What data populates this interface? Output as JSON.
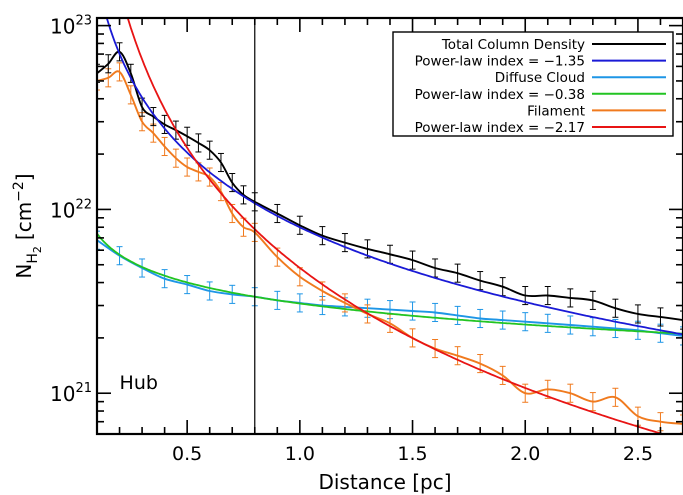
{
  "chart_data": {
    "type": "line",
    "xlabel": "Distance [pc]",
    "ylabel_base": "N",
    "ylabel_sub_main": "H",
    "ylabel_sub_sub": "2",
    "ylabel_units": "[cm",
    "ylabel_units_exp": "−2",
    "ylabel_units_close": "]",
    "xlim": [
      0.1,
      2.7
    ],
    "ylim": [
      6e+20,
      1.1e+23
    ],
    "yscale": "log",
    "x_ticks": [
      {
        "value": 0.5,
        "label": "0.5"
      },
      {
        "value": 1.0,
        "label": "1.0"
      },
      {
        "value": 1.5,
        "label": "1.5"
      },
      {
        "value": 2.0,
        "label": "2.0"
      },
      {
        "value": 2.5,
        "label": "2.5"
      }
    ],
    "y_ticks": [
      {
        "value": 1e+21,
        "base": "10",
        "exp": "21"
      },
      {
        "value": 1e+22,
        "base": "10",
        "exp": "22"
      },
      {
        "value": 1e+23,
        "base": "10",
        "exp": "23"
      }
    ],
    "vertical_line_x": 0.8,
    "annotation": {
      "text": "Hub",
      "x": 0.2,
      "y": 1e+21
    },
    "legend_position": "top-right",
    "legend": [
      {
        "label": "Total Column Density",
        "color": "#000000"
      },
      {
        "label": "Power-law index = −1.35",
        "color": "#1a1ad6"
      },
      {
        "label": "Diffuse Cloud",
        "color": "#1e96e6"
      },
      {
        "label": "Power-law index = −0.38",
        "color": "#22c422"
      },
      {
        "label": "Filament",
        "color": "#f07a1e"
      },
      {
        "label": "Power-law index = −2.17",
        "color": "#e81414"
      }
    ],
    "series": [
      {
        "name": "Total Column Density",
        "color": "#000000",
        "errorbars": true,
        "x": [
          0.1,
          0.15,
          0.2,
          0.25,
          0.3,
          0.35,
          0.4,
          0.45,
          0.5,
          0.55,
          0.6,
          0.65,
          0.7,
          0.75,
          0.8,
          0.9,
          1.0,
          1.1,
          1.2,
          1.3,
          1.4,
          1.5,
          1.6,
          1.7,
          1.8,
          1.9,
          2.0,
          2.1,
          2.2,
          2.3,
          2.4,
          2.5,
          2.6,
          2.7
        ],
        "y": [
          5.5e+22,
          6.2e+22,
          7.2e+22,
          5.5e+22,
          3.6e+22,
          3.2e+22,
          2.9e+22,
          2.7e+22,
          2.5e+22,
          2.3e+22,
          2.1e+22,
          1.8e+22,
          1.4e+22,
          1.2e+22,
          1.1e+22,
          9.5e+21,
          8.2e+21,
          7.2e+21,
          6.6e+21,
          6.1e+21,
          5.7e+21,
          5.3e+21,
          4.8e+21,
          4.5e+21,
          4.1e+21,
          3.8e+21,
          3.4e+21,
          3.4e+21,
          3.3e+21,
          3.2e+21,
          2.9e+21,
          2.7e+21,
          2.6e+21,
          2.5e+21
        ]
      },
      {
        "name": "Power-law index = −1.35",
        "color": "#1a1ad6",
        "errorbars": false,
        "powerlaw": {
          "A": 1.08e+22,
          "x0": 0.8,
          "k": -1.35
        },
        "x": [
          0.15,
          0.2,
          0.25,
          0.3,
          0.4,
          0.5,
          0.6,
          0.7,
          0.8,
          1.0,
          1.2,
          1.4,
          1.6,
          1.8,
          2.0,
          2.2,
          2.4,
          2.6,
          2.7
        ],
        "y": [
          1.03e+23,
          7.25e+22,
          5.3e+22,
          4.2e+22,
          2.9e+22,
          2.1e+22,
          1.59e+22,
          1.29e+22,
          1.08e+22,
          7.8e+21,
          6.1e+21,
          5e+21,
          4.2e+21,
          3.6e+21,
          3.1e+21,
          2.8e+21,
          2.5e+21,
          2.3e+21,
          2.2e+21
        ]
      },
      {
        "name": "Diffuse Cloud",
        "color": "#1e96e6",
        "errorbars": true,
        "x": [
          0.1,
          0.2,
          0.3,
          0.4,
          0.5,
          0.6,
          0.7,
          0.8,
          0.9,
          1.0,
          1.1,
          1.2,
          1.3,
          1.4,
          1.5,
          1.6,
          1.7,
          1.8,
          1.9,
          2.0,
          2.1,
          2.2,
          2.3,
          2.4,
          2.5,
          2.6,
          2.7
        ],
        "y": [
          6.8e+21,
          5.6e+21,
          4.8e+21,
          4.2e+21,
          3.9e+21,
          3.6e+21,
          3.45e+21,
          3.35e+21,
          3.2e+21,
          3.1e+21,
          3e+21,
          2.95e+21,
          2.9e+21,
          2.85e+21,
          2.8e+21,
          2.75e+21,
          2.65e+21,
          2.55e+21,
          2.5e+21,
          2.45e+21,
          2.4e+21,
          2.35e+21,
          2.3e+21,
          2.25e+21,
          2.2e+21,
          2.12e+21,
          2.05e+21
        ]
      },
      {
        "name": "Power-law index = −0.38",
        "color": "#22c422",
        "errorbars": false,
        "powerlaw": {
          "A": 3.35e+21,
          "x0": 0.8,
          "k": -0.38
        },
        "x": [
          0.1,
          0.2,
          0.3,
          0.4,
          0.5,
          0.6,
          0.7,
          0.8,
          1.0,
          1.2,
          1.4,
          1.6,
          1.8,
          2.0,
          2.2,
          2.4,
          2.6,
          2.7
        ],
        "y": [
          7e+21,
          5.4e+21,
          4.6e+21,
          4.35e+21,
          3.9e+21,
          3.7e+21,
          3.5e+21,
          3.35e+21,
          3.1e+21,
          2.9e+21,
          2.8e+21,
          2.7e+21,
          2.6e+21,
          2.5e+21,
          2.42e+21,
          2.35e+21,
          2.3e+21,
          2.27e+21
        ]
      },
      {
        "name": "Filament",
        "color": "#f07a1e",
        "errorbars": true,
        "x": [
          0.1,
          0.15,
          0.2,
          0.25,
          0.3,
          0.35,
          0.4,
          0.45,
          0.5,
          0.55,
          0.6,
          0.65,
          0.7,
          0.75,
          0.8,
          0.9,
          1.0,
          1.1,
          1.2,
          1.3,
          1.4,
          1.5,
          1.6,
          1.7,
          1.8,
          1.9,
          2.0,
          2.1,
          2.2,
          2.3,
          2.4,
          2.5,
          2.6,
          2.7
        ],
        "y": [
          5e+22,
          5.2e+22,
          5.6e+22,
          4.2e+22,
          3e+22,
          2.6e+22,
          2.2e+22,
          1.9e+22,
          1.7e+22,
          1.6e+22,
          1.5e+22,
          1.25e+22,
          9.5e+21,
          8e+21,
          7.5e+21,
          5.5e+21,
          4.3e+21,
          3.6e+21,
          3.1e+21,
          2.7e+21,
          2.4e+21,
          2e+21,
          1.75e+21,
          1.6e+21,
          1.45e+21,
          1.25e+21,
          1e+21,
          1.05e+21,
          1e+21,
          9e+20,
          9.5e+20,
          7.5e+20,
          7e+20,
          6.8e+20
        ]
      },
      {
        "name": "Power-law index = −2.17",
        "color": "#e81414",
        "errorbars": false,
        "powerlaw": {
          "A": 7.8e+21,
          "x0": 0.8,
          "k": -2.17
        },
        "x": [
          0.22,
          0.25,
          0.3,
          0.4,
          0.5,
          0.6,
          0.7,
          0.8,
          1.0,
          1.2,
          1.4,
          1.6,
          1.8,
          2.0,
          2.2,
          2.4,
          2.6,
          2.7
        ],
        "y": [
          1.2e+23,
          9.4e+22,
          6.3e+22,
          3.5e+22,
          2.2e+22,
          1.45e+22,
          1.05e+22,
          7.8e+21,
          4.8e+21,
          3.2e+21,
          2.3e+21,
          1.75e+21,
          1.35e+21,
          1.1e+21,
          9e+20,
          7.5e+20,
          6.3e+20,
          5.9e+20
        ]
      }
    ]
  }
}
